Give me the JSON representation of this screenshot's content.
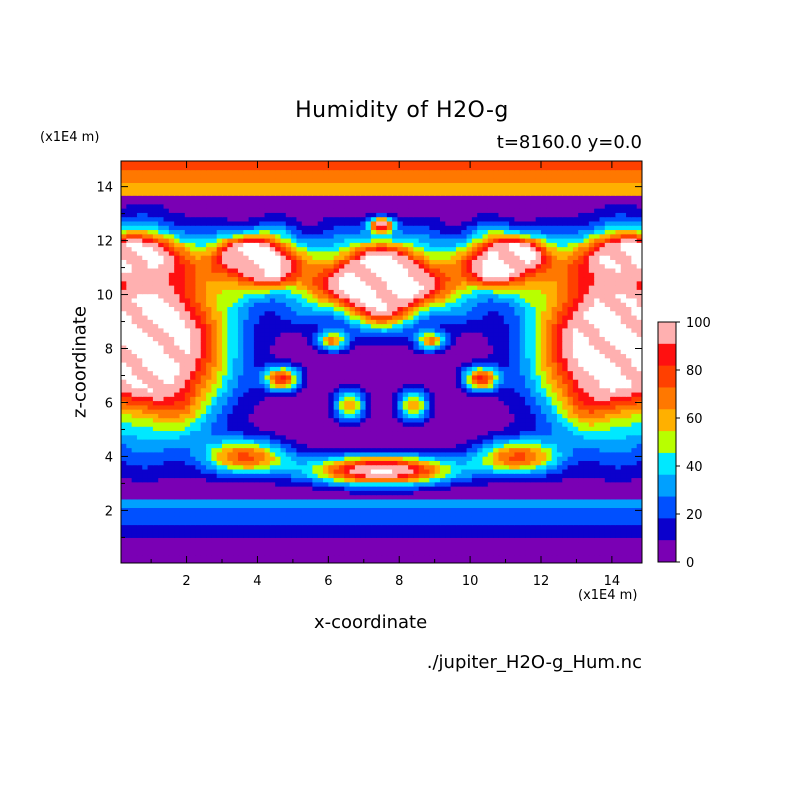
{
  "chart_data": {
    "type": "heatmap",
    "title": "Humidity of H2O-g",
    "subtitle": "t=8160.0 y=0.0",
    "xlabel": "x-coordinate",
    "ylabel": "z-coordinate",
    "x_unit": "(x1E4 m)",
    "y_unit": "(x1E4 m)",
    "source_file": "./jupiter_H2O-g_Hum.nc",
    "xlim": [
      0,
      15
    ],
    "ylim": [
      0,
      15
    ],
    "x_ticks": [
      2,
      4,
      6,
      8,
      10,
      12,
      14
    ],
    "y_ticks": [
      2,
      4,
      6,
      8,
      10,
      12,
      14
    ],
    "colorbar": {
      "range": [
        0,
        100
      ],
      "ticks": [
        0,
        20,
        40,
        60,
        80,
        100
      ],
      "levels": [
        {
          "from": 0,
          "to": 10,
          "color": "#7a00b4"
        },
        {
          "from": 10,
          "to": 20,
          "color": "#0b00cc"
        },
        {
          "from": 20,
          "to": 30,
          "color": "#0050ff"
        },
        {
          "from": 30,
          "to": 40,
          "color": "#00a0ff"
        },
        {
          "from": 40,
          "to": 50,
          "color": "#00e8ff"
        },
        {
          "from": 50,
          "to": 60,
          "color": "#b8ff00"
        },
        {
          "from": 60,
          "to": 70,
          "color": "#ffb000"
        },
        {
          "from": 70,
          "to": 80,
          "color": "#ff7800"
        },
        {
          "from": 80,
          "to": 90,
          "color": "#ff4000"
        },
        {
          "from": 90,
          "to": 100,
          "color": "#ff1010"
        },
        {
          "from": 100,
          "to": null,
          "color": "#ffb0b0"
        }
      ]
    },
    "field_description_bands": [
      {
        "z_range": [
          0.0,
          1.0
        ],
        "humidity": 5
      },
      {
        "z_range": [
          1.0,
          1.5
        ],
        "humidity": 15
      },
      {
        "z_range": [
          1.5,
          2.1
        ],
        "humidity": 25
      },
      {
        "z_range": [
          2.1,
          2.5
        ],
        "humidity": 35
      },
      {
        "z_range": [
          13.7,
          14.1
        ],
        "humidity": 65
      },
      {
        "z_range": [
          14.1,
          14.6
        ],
        "humidity": 75
      },
      {
        "z_range": [
          14.6,
          14.9
        ],
        "humidity": 85
      }
    ]
  }
}
